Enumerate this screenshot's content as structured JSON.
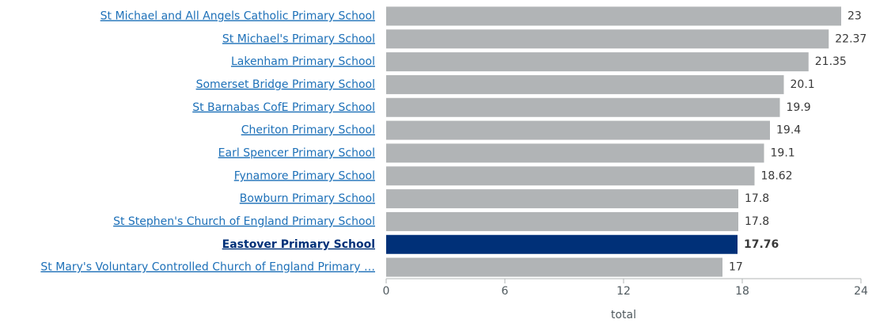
{
  "chart_data": {
    "type": "bar",
    "orientation": "horizontal",
    "categories": [
      "St Michael and All Angels Catholic Primary School",
      "St Michael's Primary School",
      "Lakenham Primary School",
      "Somerset Bridge Primary School",
      "St Barnabas CofE Primary School",
      "Cheriton Primary School",
      "Earl Spencer Primary School",
      "Fynamore Primary School",
      "Bowburn Primary School",
      "St Stephen's Church of England Primary School",
      "Eastover Primary School",
      "St Mary's Voluntary Controlled Church of England Primary …"
    ],
    "values": [
      23,
      22.37,
      21.35,
      20.1,
      19.9,
      19.4,
      19.1,
      18.62,
      17.8,
      17.8,
      17.76,
      17
    ],
    "color": "#b1b4b6",
    "colors": [
      "#b1b4b6",
      "#b1b4b6",
      "#b1b4b6",
      "#b1b4b6",
      "#b1b4b6",
      "#b1b4b6",
      "#b1b4b6",
      "#b1b4b6",
      "#b1b4b6",
      "#b1b4b6",
      "#003078",
      "#b1b4b6"
    ],
    "xlim": [
      0,
      24
    ],
    "xticks": [
      0,
      6,
      12,
      18,
      24
    ],
    "xlabel": "total",
    "grid": false
  }
}
